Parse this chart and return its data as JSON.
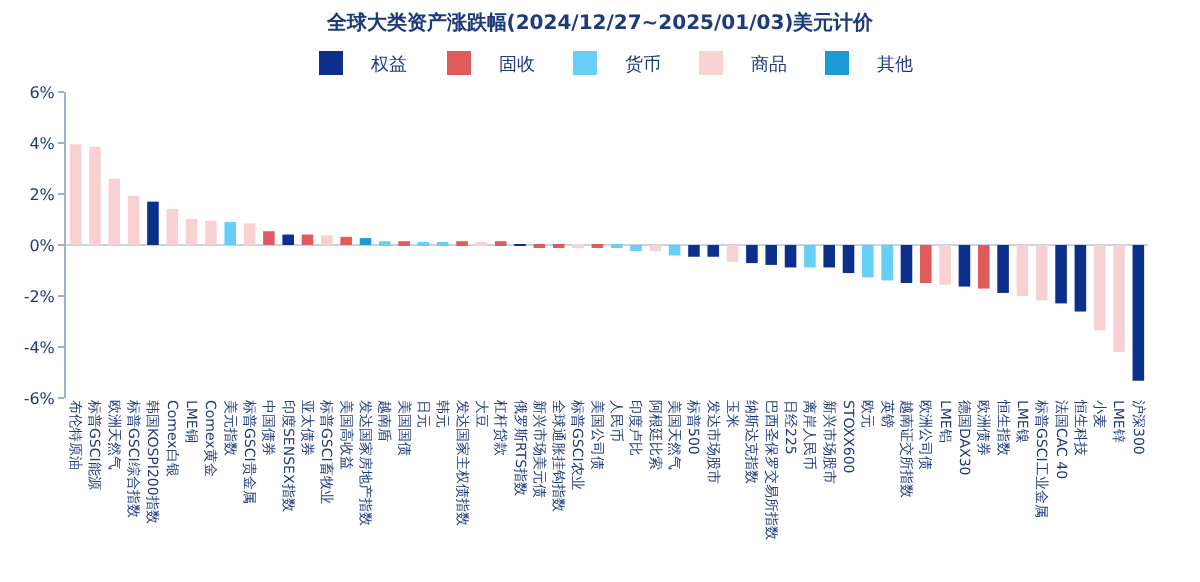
{
  "chart_data": {
    "type": "bar",
    "title": "全球大类资产涨跌幅(2024/12/27~2025/01/03)美元计价",
    "categories": [
      "布伦特原油",
      "标普GSCI能源",
      "欧洲天然气",
      "标普GSCI综合指数",
      "韩国KOSPI200指数",
      "Comex白银",
      "LME铜",
      "Comex黄金",
      "美元指数",
      "标普GSCI贵金属",
      "中国债券",
      "印度SENSEX指数",
      "亚太债券",
      "标普GSCI畜牧业",
      "美国高收益",
      "发达国家房地产指数",
      "越南盾",
      "美国国债",
      "日元",
      "韩元",
      "发达国家主权债指数",
      "大豆",
      "杠杆贷款",
      "俄罗斯RTS指数",
      "新兴市场美元债",
      "全球通胀挂钩指数",
      "标普GSCI农业",
      "美国公司债",
      "人民币",
      "印度卢比",
      "阿根廷比索",
      "美国天然气",
      "标普500",
      "发达市场股市",
      "玉米",
      "纳斯达克指数",
      "巴西圣保罗交易所指数",
      "日经225",
      "离岸人民币",
      "新兴市场股市",
      "STOXX600",
      "欧元",
      "英镑",
      "越南证交所指数",
      "欧洲公司债",
      "LME铝",
      "德国DAX30",
      "欧洲债券",
      "恒生指数",
      "LME镍",
      "标普GSCI工业金属",
      "法国CAC 40",
      "恒生科技",
      "小麦",
      "LME锌",
      "沪深300"
    ],
    "series": [
      {
        "name": "权益",
        "color": "#0b2f8a",
        "values": [
          null,
          null,
          null,
          null,
          1.7,
          null,
          null,
          null,
          null,
          null,
          null,
          0.41,
          null,
          null,
          null,
          null,
          null,
          null,
          null,
          null,
          null,
          null,
          null,
          0.02,
          null,
          null,
          null,
          null,
          null,
          null,
          null,
          null,
          -0.46,
          -0.46,
          null,
          -0.71,
          -0.78,
          -0.88,
          null,
          -0.88,
          -1.1,
          null,
          null,
          -1.49,
          null,
          null,
          -1.63,
          null,
          -1.88,
          null,
          null,
          -2.29,
          -2.61,
          null,
          null,
          -5.32
        ]
      },
      {
        "name": "固收",
        "color": "#e05c5c",
        "values": [
          null,
          null,
          null,
          null,
          null,
          null,
          null,
          null,
          null,
          null,
          0.54,
          null,
          0.41,
          null,
          0.32,
          null,
          null,
          0.15,
          null,
          null,
          0.15,
          null,
          0.15,
          null,
          -0.05,
          -0.05,
          null,
          -0.08,
          null,
          null,
          null,
          null,
          null,
          null,
          null,
          null,
          null,
          null,
          null,
          null,
          null,
          null,
          null,
          null,
          -1.49,
          null,
          null,
          -1.71,
          null,
          null,
          null,
          null,
          null,
          null,
          null,
          null
        ]
      },
      {
        "name": "货币",
        "color": "#66cff7",
        "values": [
          null,
          null,
          null,
          null,
          null,
          null,
          null,
          null,
          0.9,
          null,
          null,
          null,
          null,
          null,
          null,
          null,
          0.15,
          null,
          0.12,
          0.1,
          null,
          null,
          null,
          null,
          null,
          null,
          null,
          null,
          -0.1,
          -0.24,
          null,
          -0.41,
          null,
          null,
          null,
          null,
          null,
          null,
          -0.88,
          null,
          null,
          -1.27,
          -1.39,
          null,
          null,
          null,
          null,
          null,
          null,
          null,
          null,
          null,
          null,
          null,
          null,
          null
        ]
      },
      {
        "name": "商品",
        "color": "#f8d2d2",
        "values": [
          3.95,
          3.85,
          2.6,
          1.93,
          null,
          1.41,
          1.02,
          0.95,
          null,
          0.85,
          null,
          null,
          null,
          0.37,
          null,
          null,
          null,
          null,
          null,
          null,
          null,
          0.1,
          null,
          null,
          null,
          null,
          -0.05,
          null,
          null,
          null,
          -0.24,
          null,
          null,
          null,
          -0.66,
          null,
          null,
          null,
          null,
          null,
          null,
          null,
          null,
          null,
          null,
          -1.56,
          null,
          null,
          null,
          -2.0,
          -2.17,
          null,
          null,
          -3.34,
          -4.2,
          null
        ]
      },
      {
        "name": "其他",
        "color": "#1b9ad6",
        "values": [
          null,
          null,
          null,
          null,
          null,
          null,
          null,
          null,
          null,
          null,
          null,
          null,
          null,
          null,
          null,
          0.27,
          null,
          null,
          null,
          null,
          null,
          null,
          null,
          null,
          null,
          null,
          null,
          null,
          null,
          null,
          null,
          null,
          null,
          null,
          null,
          null,
          null,
          null,
          null,
          null,
          null,
          null,
          null,
          null,
          null,
          null,
          null,
          null,
          null,
          null,
          null,
          null,
          null,
          null,
          null,
          null
        ]
      }
    ],
    "stacked": true,
    "ylim": [
      -6,
      6
    ],
    "yticks": [
      {
        "value": -6,
        "label": "-6%"
      },
      {
        "value": -4,
        "label": "-4%"
      },
      {
        "value": -2,
        "label": "-2%"
      },
      {
        "value": 0,
        "label": "0%"
      },
      {
        "value": 2,
        "label": "2%"
      },
      {
        "value": 4,
        "label": "4%"
      },
      {
        "value": 6,
        "label": "6%"
      }
    ],
    "legend": "top"
  }
}
